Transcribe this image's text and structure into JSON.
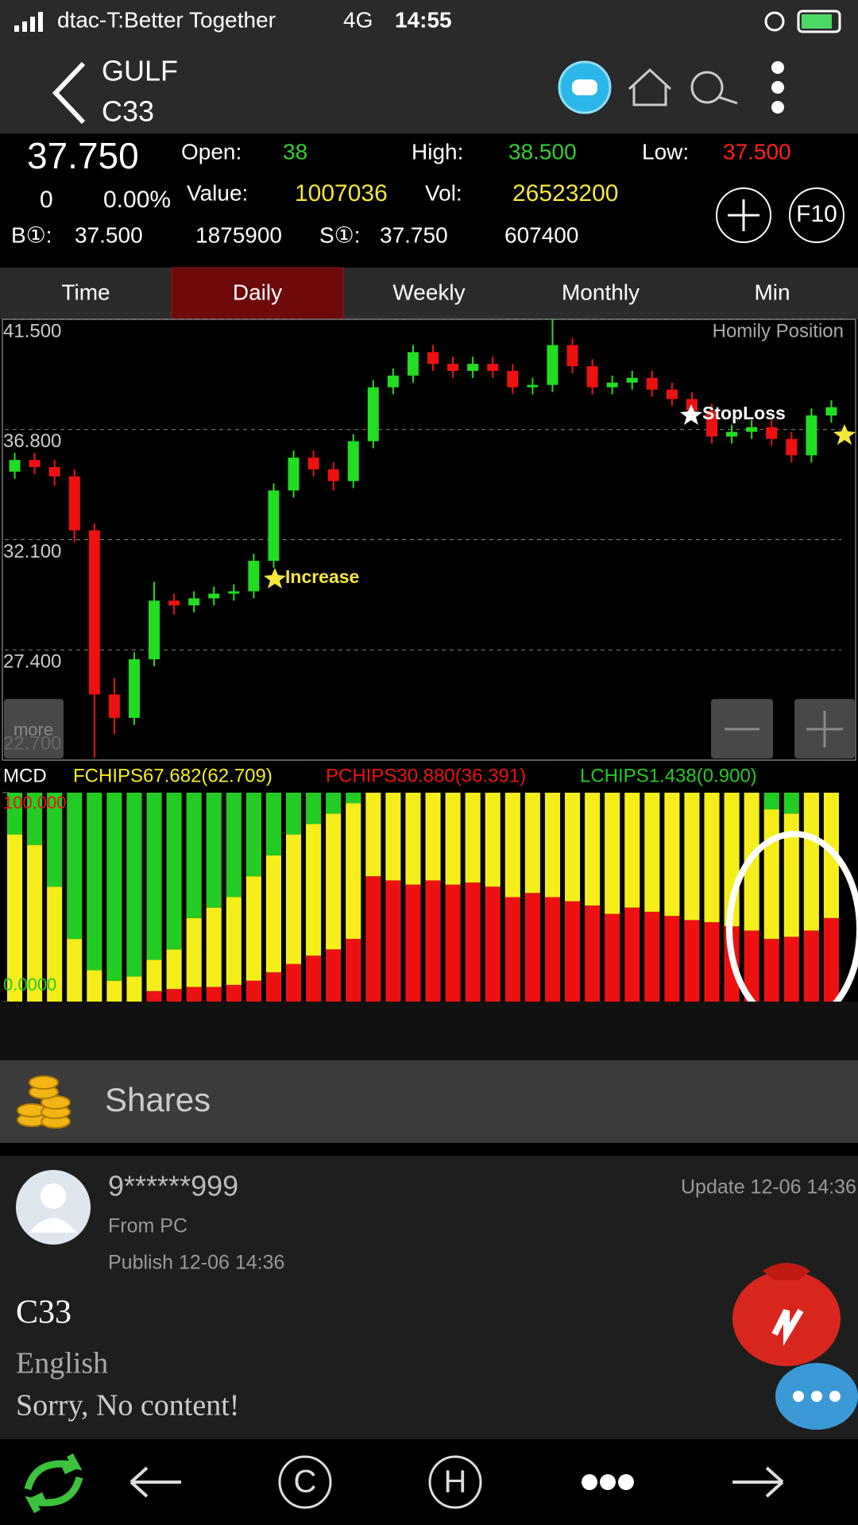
{
  "status_bar": {
    "carrier": "dtac-T:Better Together",
    "network": "4G",
    "time": "14:55"
  },
  "header": {
    "symbol": "GULF",
    "code": "C33"
  },
  "quote": {
    "price": "37.750",
    "change": "0",
    "change_pct": "0.00%",
    "open_label": "Open:",
    "open": "38",
    "high_label": "High:",
    "high": "38.500",
    "low_label": "Low:",
    "low": "37.500",
    "value_label": "Value:",
    "value": "1007036",
    "vol_label": "Vol:",
    "vol": "26523200",
    "bid_label": "B①:",
    "bid": "37.500",
    "bid_vol": "1875900",
    "ask_label": "S①:",
    "ask": "37.750",
    "ask_vol": "607400",
    "f10": "F10"
  },
  "tabs": [
    "Time",
    "Daily",
    "Weekly",
    "Monthly",
    "Min"
  ],
  "active_tab": 1,
  "chart_data": [
    {
      "type": "candlestick",
      "note": "Homily Position",
      "annotations": [
        "Increase",
        "StopLoss"
      ],
      "more_button": "more",
      "ylim": [
        22.7,
        41.5
      ],
      "yticks": [
        {
          "value": 41.5,
          "label": "41.500"
        },
        {
          "value": 36.8,
          "label": "36.800"
        },
        {
          "value": 32.1,
          "label": "32.100"
        },
        {
          "value": 27.4,
          "label": "27.400"
        },
        {
          "value": 22.7,
          "label": "22.700"
        }
      ],
      "up_color": "#22dd22",
      "down_color": "#ee1111",
      "candles": {
        "open": [
          35.0,
          35.5,
          35.2,
          34.8,
          32.5,
          25.5,
          24.5,
          27.0,
          29.5,
          29.3,
          29.6,
          29.8,
          29.9,
          31.2,
          34.2,
          35.6,
          35.1,
          34.6,
          36.3,
          38.6,
          39.1,
          40.1,
          39.6,
          39.3,
          39.6,
          39.3,
          38.6,
          38.7,
          40.4,
          39.5,
          38.6,
          38.8,
          39.0,
          38.5,
          38.1,
          37.6,
          36.5,
          36.7,
          36.9,
          36.4,
          35.7,
          37.4
        ],
        "close": [
          35.5,
          35.2,
          34.8,
          32.5,
          25.5,
          24.5,
          27.0,
          29.5,
          29.3,
          29.6,
          29.8,
          29.9,
          31.2,
          34.2,
          35.6,
          35.1,
          34.6,
          36.3,
          38.6,
          39.1,
          40.1,
          39.6,
          39.3,
          39.6,
          39.3,
          38.6,
          38.7,
          40.4,
          39.5,
          38.6,
          38.8,
          39.0,
          38.5,
          38.1,
          37.6,
          36.5,
          36.7,
          36.9,
          36.4,
          35.7,
          37.4,
          37.75
        ],
        "low": [
          34.7,
          34.9,
          34.4,
          32.0,
          22.8,
          23.8,
          24.2,
          26.7,
          28.9,
          29.0,
          29.3,
          29.5,
          29.6,
          30.9,
          33.9,
          34.8,
          34.2,
          34.3,
          36.0,
          38.3,
          38.8,
          39.3,
          39.0,
          39.0,
          39.0,
          38.3,
          38.3,
          38.4,
          39.2,
          38.3,
          38.3,
          38.5,
          38.2,
          37.8,
          37.3,
          36.2,
          36.2,
          36.4,
          36.1,
          35.4,
          35.4,
          37.1
        ],
        "high": [
          35.8,
          35.8,
          35.5,
          35.1,
          32.8,
          26.2,
          27.3,
          30.3,
          29.8,
          29.9,
          30.1,
          30.2,
          31.5,
          34.5,
          35.9,
          35.9,
          35.4,
          36.6,
          38.9,
          39.4,
          40.4,
          40.4,
          39.9,
          39.9,
          39.9,
          39.6,
          39.0,
          41.5,
          40.7,
          39.8,
          39.1,
          39.3,
          39.3,
          38.8,
          38.4,
          37.9,
          37.0,
          37.2,
          37.2,
          36.7,
          37.7,
          38.05
        ]
      }
    },
    {
      "type": "stacked_bar",
      "title": "MCD",
      "ylim": [
        0,
        100
      ],
      "yticks": [
        {
          "value": 100,
          "label": "100.000"
        },
        {
          "value": 0,
          "label": "0.0000"
        }
      ],
      "series": [
        {
          "name": "FCHIPS67.682(62.709)",
          "color": "#f5ee1a",
          "values": [
            80,
            75,
            55,
            30,
            15,
            10,
            12,
            15,
            19,
            33,
            38,
            42,
            50,
            56,
            62,
            63,
            65,
            65,
            40,
            42,
            44,
            42,
            44,
            43,
            45,
            50,
            48,
            50,
            52,
            54,
            58,
            55,
            57,
            59,
            61,
            62,
            64,
            66,
            62,
            59,
            66,
            60
          ]
        },
        {
          "name": "PCHIPS30.880(36.391)",
          "color": "#ee1111",
          "values": [
            0,
            0,
            0,
            0,
            0,
            0,
            0,
            5,
            6,
            7,
            7,
            8,
            10,
            14,
            18,
            22,
            25,
            30,
            60,
            58,
            56,
            58,
            56,
            57,
            55,
            50,
            52,
            50,
            48,
            46,
            42,
            45,
            43,
            41,
            39,
            38,
            36,
            34,
            30,
            31,
            34,
            40
          ]
        },
        {
          "name": "LCHIPS1.438(0.900)",
          "color": "#22cc22",
          "values": [
            20,
            25,
            45,
            70,
            85,
            90,
            88,
            80,
            75,
            60,
            55,
            50,
            40,
            30,
            20,
            15,
            10,
            5,
            0,
            0,
            0,
            0,
            0,
            0,
            0,
            0,
            0,
            0,
            0,
            0,
            0,
            0,
            0,
            0,
            0,
            0,
            0,
            0,
            8,
            10,
            0,
            0
          ]
        }
      ]
    }
  ],
  "shares": {
    "title": "Shares"
  },
  "post": {
    "user": "9******999",
    "source": "From PC",
    "publish": "Publish 12-06 14:36",
    "update": "Update 12-06 14:36",
    "title": "C33",
    "language": "English",
    "content": "Sorry, No content!"
  },
  "nav": [
    "C",
    "H"
  ]
}
